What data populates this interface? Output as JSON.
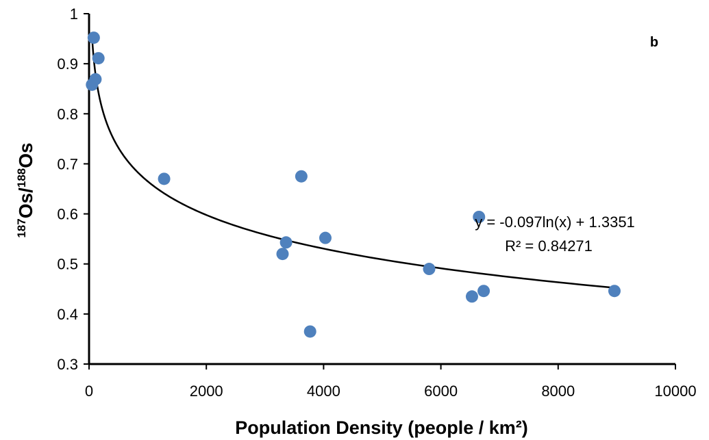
{
  "chart_data": {
    "type": "scatter",
    "panel_label": "b",
    "xlabel": "Population Density (people / km²)",
    "ylabel_parts": {
      "sup1": "187",
      "base1": "Os/",
      "sup2": "188",
      "base2": "Os"
    },
    "xlim": [
      0,
      10000
    ],
    "ylim": [
      0.3,
      1.0
    ],
    "x_ticks": [
      0,
      2000,
      4000,
      6000,
      8000,
      10000
    ],
    "y_ticks": [
      0.3,
      0.4,
      0.5,
      0.6,
      0.7,
      0.8,
      0.9,
      1.0
    ],
    "x_tick_labels": [
      "0",
      "2000",
      "4000",
      "6000",
      "8000",
      "10000"
    ],
    "y_tick_labels": [
      "0.3",
      "0.4",
      "0.5",
      "0.6",
      "0.7",
      "0.8",
      "0.9",
      "1"
    ],
    "grid": false,
    "point_color": "#4f81bd",
    "trend_color": "#000000",
    "points": [
      {
        "x": 80,
        "y": 0.952
      },
      {
        "x": 160,
        "y": 0.911
      },
      {
        "x": 110,
        "y": 0.869
      },
      {
        "x": 50,
        "y": 0.858
      },
      {
        "x": 1280,
        "y": 0.67
      },
      {
        "x": 3620,
        "y": 0.675
      },
      {
        "x": 3360,
        "y": 0.543
      },
      {
        "x": 3300,
        "y": 0.52
      },
      {
        "x": 4030,
        "y": 0.552
      },
      {
        "x": 3770,
        "y": 0.365
      },
      {
        "x": 5800,
        "y": 0.49
      },
      {
        "x": 6650,
        "y": 0.594
      },
      {
        "x": 6530,
        "y": 0.435
      },
      {
        "x": 6730,
        "y": 0.446
      },
      {
        "x": 8960,
        "y": 0.446
      }
    ],
    "trendline": {
      "type": "logarithmic",
      "a": -0.097,
      "b": 1.3351,
      "x_range": [
        50,
        8960
      ],
      "equation": "y = -0.097ln(x) + 1.3351",
      "r2_label": "R² = 0.84271"
    }
  }
}
